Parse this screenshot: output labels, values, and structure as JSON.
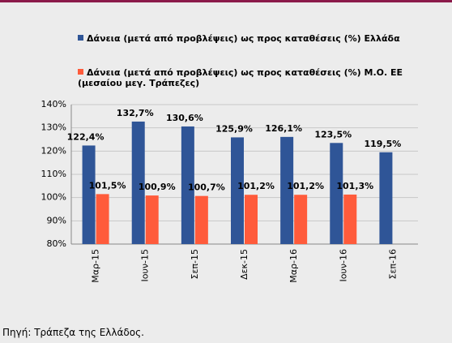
{
  "chart_data": {
    "type": "bar",
    "categories": [
      "Μαρ-15",
      "Ιουν-15",
      "Σεπ-15",
      "Δεκ-15",
      "Μαρ-16",
      "Ιουν-16",
      "Σεπ-16"
    ],
    "series": [
      {
        "name": "Δάνεια (μετά από προβλέψεις) ως προς καταθέσεις (%) Ελλάδα",
        "color": "#2f5597",
        "values": [
          122.4,
          132.7,
          130.6,
          125.9,
          126.1,
          123.5,
          119.5
        ],
        "value_labels": [
          "122,4%",
          "132,7%",
          "130,6%",
          "125,9%",
          "126,1%",
          "123,5%",
          "119,5%"
        ]
      },
      {
        "name": "Δάνεια (μετά από προβλέψεις) ως προς καταθέσεις (%) Μ.Ο. ΕΕ (μεσαίου μεγ. Τράπεζες)",
        "color": "#ff5b3b",
        "values": [
          101.5,
          100.9,
          100.7,
          101.2,
          101.2,
          101.3,
          null
        ],
        "value_labels": [
          "101,5%",
          "100,9%",
          "100,7%",
          "101,2%",
          "101,2%",
          "101,3%",
          null
        ]
      }
    ],
    "ylim": [
      80,
      140
    ],
    "yticks": [
      {
        "value": 80,
        "label": "80%"
      },
      {
        "value": 90,
        "label": "90%"
      },
      {
        "value": 100,
        "label": "100%"
      },
      {
        "value": 110,
        "label": "110%"
      },
      {
        "value": 120,
        "label": "120%"
      },
      {
        "value": 130,
        "label": "130%"
      },
      {
        "value": 140,
        "label": "140%"
      }
    ],
    "grid": true,
    "source": "Πηγή: Τράπεζα της Ελλάδος."
  }
}
